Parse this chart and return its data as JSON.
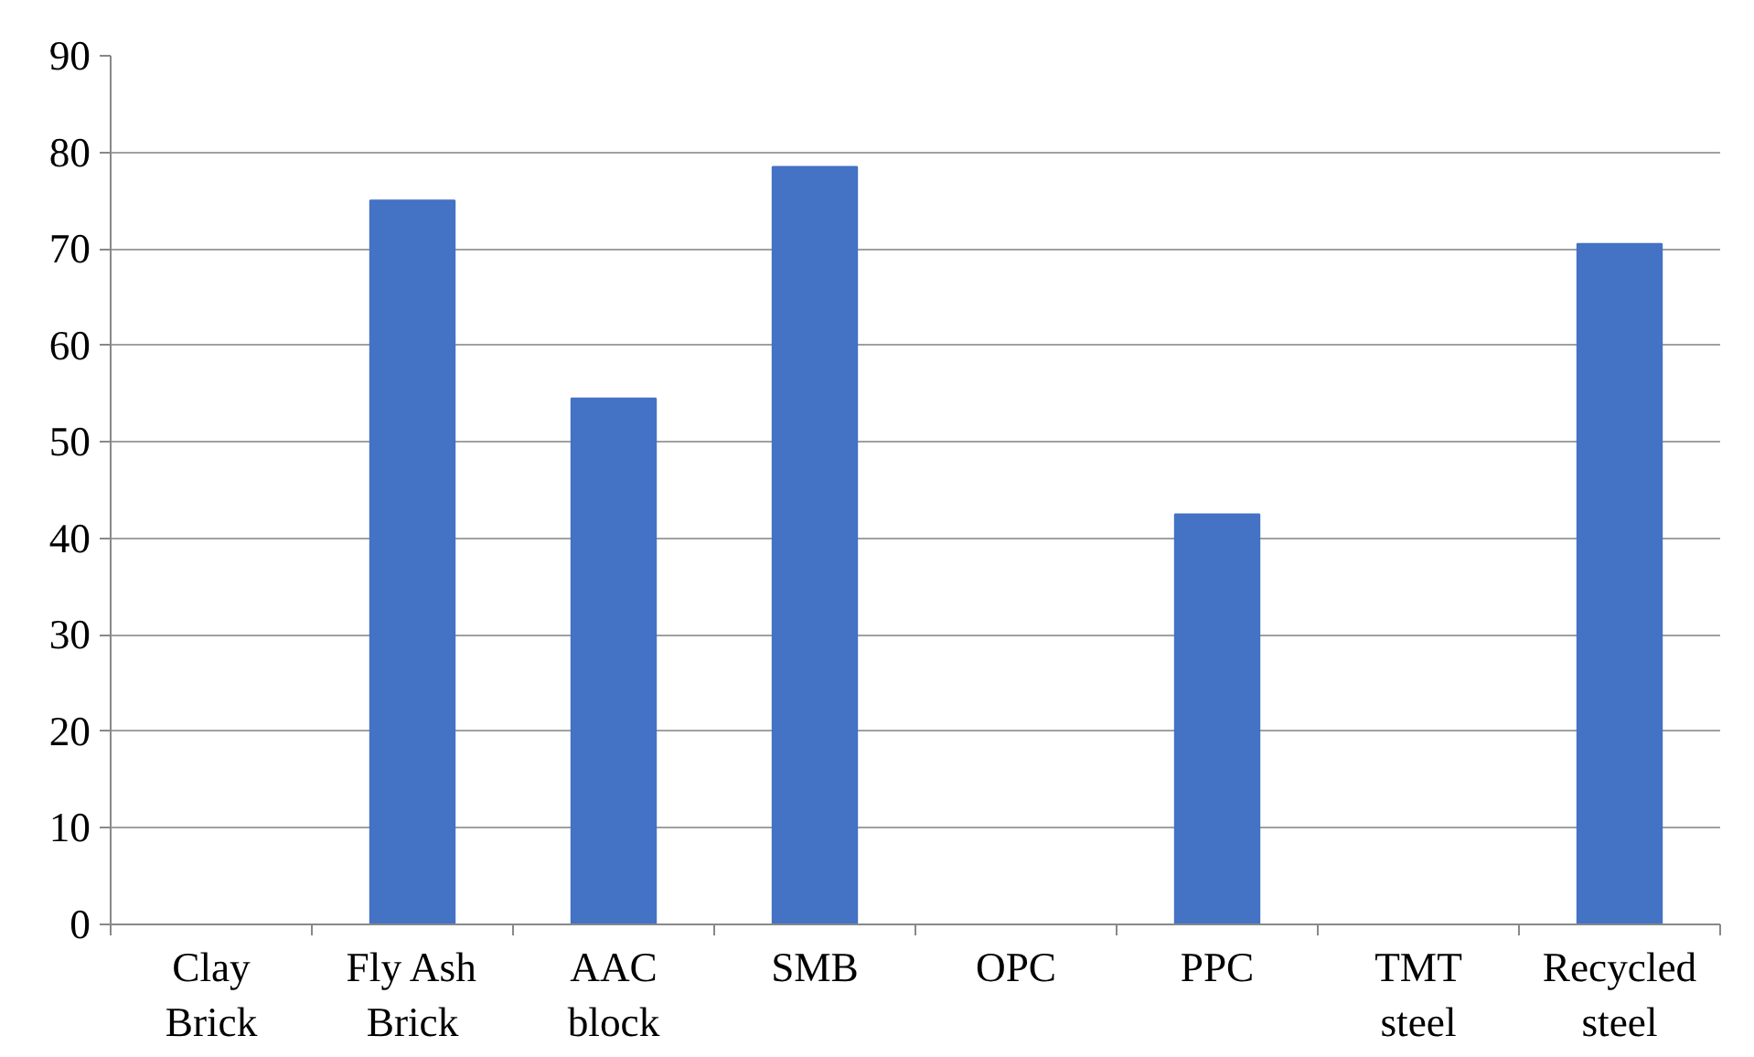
{
  "chart_data": {
    "type": "bar",
    "categories": [
      "Clay Brick",
      "Fly Ash Brick",
      "AAC block",
      "SMB",
      "OPC",
      "PPC",
      "TMT steel",
      "Recycled steel"
    ],
    "values": [
      0,
      75,
      54.5,
      78.5,
      0,
      42.5,
      0,
      70.5
    ],
    "color": "#4472c4",
    "ylim": [
      0,
      90
    ],
    "yticks": [
      0,
      10,
      20,
      30,
      40,
      50,
      60,
      70,
      80,
      90
    ],
    "grid": "y"
  }
}
